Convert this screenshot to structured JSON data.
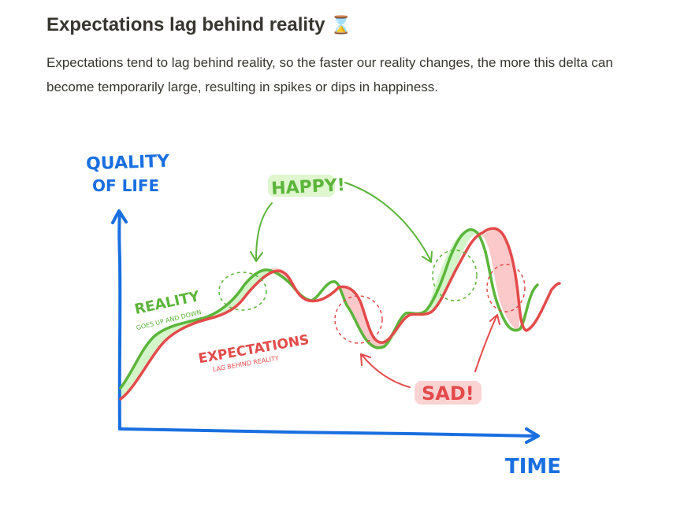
{
  "page": {
    "title": "Expectations lag behind reality",
    "title_icon": "hourglass-icon",
    "title_icon_glyph": "⌛",
    "body": "Expectations tend to lag behind reality, so the faster our reality changes, the more this delta can become temporarily large, resulting in spikes or dips in happiness."
  },
  "diagram": {
    "y_axis_label_line1": "QUALITY",
    "y_axis_label_line2": "OF LIFE",
    "x_axis_label": "TIME",
    "reality_label": "REALITY",
    "reality_sublabel": "GOES UP AND DOWN",
    "expectations_label": "EXPECTATIONS",
    "expectations_sublabel": "LAG BEHIND REALITY",
    "happy_label": "HAPPY!",
    "sad_label": "SAD!",
    "colors": {
      "axis": "#1a6fe0",
      "reality": "#5bb53a",
      "reality_fill": "#d3f5c9",
      "expectations": "#e44a4a",
      "expectations_fill": "#fbc9c9",
      "happy_highlight": "#dff6cf",
      "sad_highlight": "#fbd3d3"
    }
  }
}
